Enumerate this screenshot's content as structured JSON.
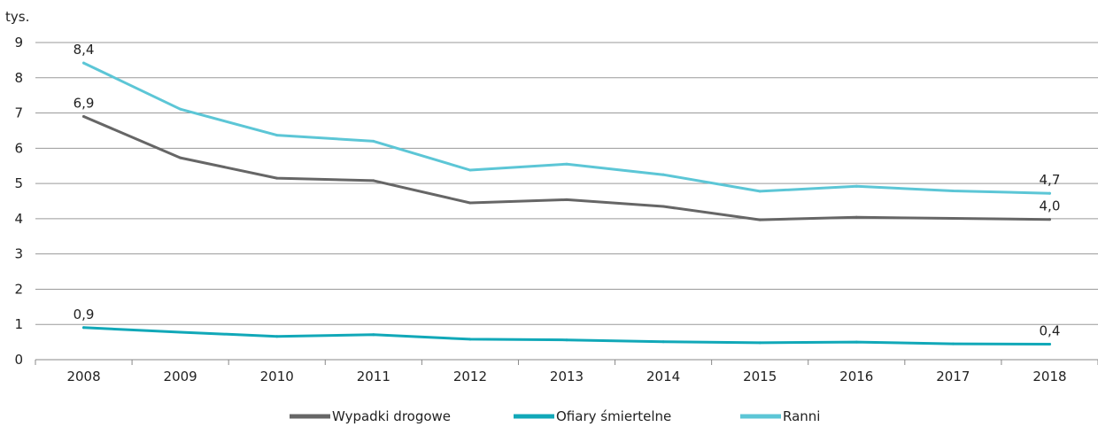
{
  "chart_data": {
    "type": "line",
    "unit_label": "tys.",
    "categories": [
      "2008",
      "2009",
      "2010",
      "2011",
      "2012",
      "2013",
      "2014",
      "2015",
      "2016",
      "2017",
      "2018"
    ],
    "ylim": [
      0,
      9
    ],
    "yticks": [
      0,
      1,
      2,
      3,
      4,
      5,
      6,
      7,
      8,
      9
    ],
    "grid": true,
    "legend_position": "bottom",
    "series": [
      {
        "name": "Wypadki drogowe",
        "color": "#666666",
        "values": [
          6.9,
          5.73,
          5.15,
          5.08,
          4.45,
          4.54,
          4.35,
          3.97,
          4.04,
          4.01,
          3.98
        ],
        "labels": [
          {
            "index": 0,
            "text": "6,9"
          },
          {
            "index": 10,
            "text": "4,0"
          }
        ]
      },
      {
        "name": "Ofiary śmiertelne",
        "color": "#11a8b8",
        "values": [
          0.91,
          0.78,
          0.66,
          0.71,
          0.58,
          0.56,
          0.51,
          0.48,
          0.5,
          0.45,
          0.44
        ],
        "labels": [
          {
            "index": 0,
            "text": "0,9"
          },
          {
            "index": 10,
            "text": "0,4"
          }
        ]
      },
      {
        "name": "Ranni",
        "color": "#5cc6d6",
        "values": [
          8.42,
          7.11,
          6.37,
          6.2,
          5.38,
          5.55,
          5.25,
          4.78,
          4.92,
          4.79,
          4.72
        ],
        "labels": [
          {
            "index": 0,
            "text": "8,4"
          },
          {
            "index": 10,
            "text": "4,7"
          }
        ]
      }
    ]
  }
}
